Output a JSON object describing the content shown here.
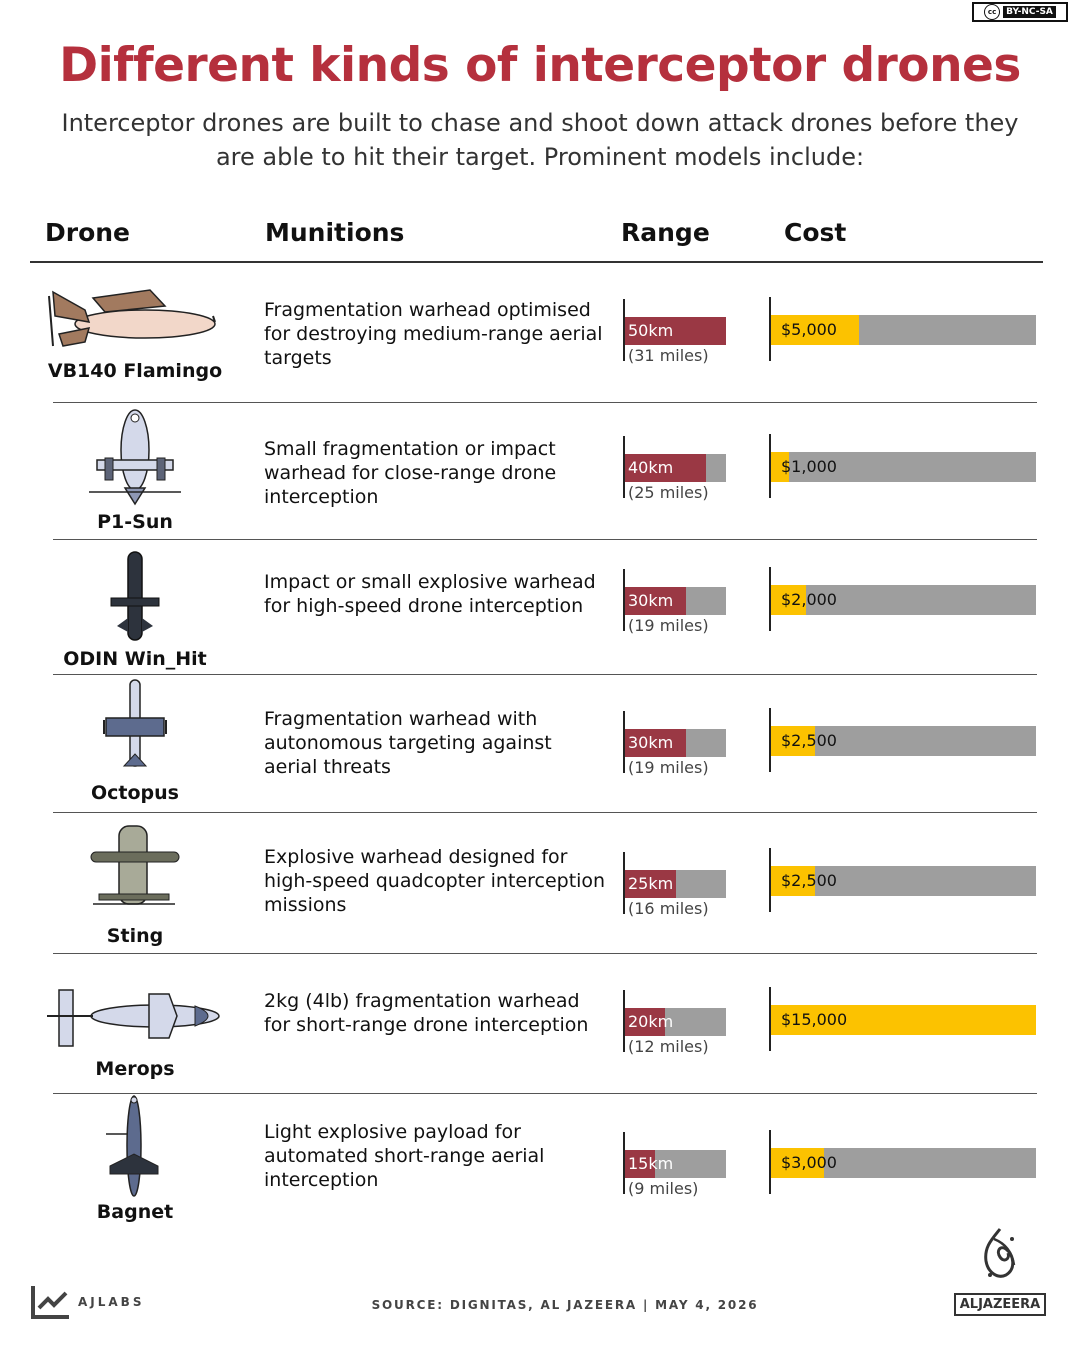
{
  "license": "BY-NC-SA",
  "title": "Different kinds of interceptor drones",
  "subtitle": "Interceptor drones are built to chase and shoot down attack drones before they are able to hit their target. Prominent models include:",
  "columns": {
    "drone": "Drone",
    "munitions": "Munitions",
    "range": "Range",
    "cost": "Cost"
  },
  "chart_data": {
    "type": "bar",
    "range_max_km": 50,
    "cost_max_usd": 15000,
    "rows": [
      {
        "drone": "VB140 Flamingo",
        "munitions": "Fragmentation warhead optimised for destroying medium-range aerial targets",
        "range_km": 50,
        "range_label": "50km",
        "range_miles": "(31 miles)",
        "cost_usd": 5000,
        "cost_label": "$5,000"
      },
      {
        "drone": "P1-Sun",
        "munitions": "Small fragmentation or impact warhead for close-range drone interception",
        "range_km": 40,
        "range_label": "40km",
        "range_miles": "(25 miles)",
        "cost_usd": 1000,
        "cost_label": "$1,000"
      },
      {
        "drone": "ODIN Win_Hit",
        "munitions": "Impact or small explosive warhead for high-speed drone interception",
        "range_km": 30,
        "range_label": "30km",
        "range_miles": "(19 miles)",
        "cost_usd": 2000,
        "cost_label": "$2,000"
      },
      {
        "drone": "Octopus",
        "munitions": "Fragmentation warhead with autonomous targeting against aerial threats",
        "range_km": 30,
        "range_label": "30km",
        "range_miles": "(19 miles)",
        "cost_usd": 2500,
        "cost_label": "$2,500"
      },
      {
        "drone": "Sting",
        "munitions": "Explosive warhead designed for high-speed quadcopter interception missions",
        "range_km": 25,
        "range_label": "25km",
        "range_miles": "(16 miles)",
        "cost_usd": 2500,
        "cost_label": "$2,500"
      },
      {
        "drone": "Merops",
        "munitions": "2kg (4lb) fragmentation warhead for short-range drone interception",
        "range_km": 20,
        "range_label": "20km",
        "range_miles": "(12 miles)",
        "cost_usd": 15000,
        "cost_label": "$15,000"
      },
      {
        "drone": "Bagnet",
        "munitions": "Light explosive payload for automated short-range aerial interception",
        "range_km": 15,
        "range_label": "15km",
        "range_miles": "(9 miles)",
        "cost_usd": 3000,
        "cost_label": "$3,000"
      }
    ],
    "colors": {
      "range": "#9a3844",
      "cost": "#fcc200",
      "track": "#9e9e9e"
    }
  },
  "footer": {
    "source": "SOURCE:  DIGNITAS, AL JAZEERA  |   MAY 4, 2026",
    "ajlabs": "AJLABS",
    "brand": "ALJAZEERA"
  }
}
